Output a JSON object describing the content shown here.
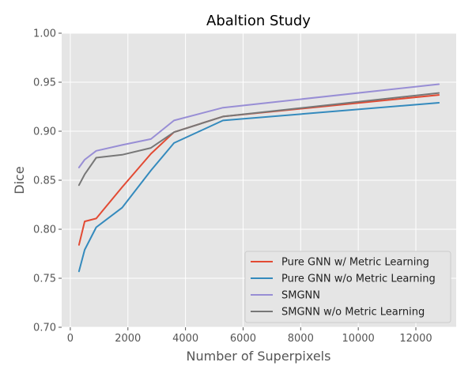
{
  "chart_data": {
    "type": "line",
    "title": "Abaltion Study",
    "xlabel": "Number of Superpixels",
    "ylabel": "Dice",
    "xlim": [
      -300,
      13400
    ],
    "ylim": [
      0.7,
      1.0
    ],
    "xticks": [
      0,
      2000,
      4000,
      6000,
      8000,
      10000,
      12000
    ],
    "yticks": [
      0.7,
      0.75,
      0.8,
      0.85,
      0.9,
      0.95,
      1.0
    ],
    "grid": true,
    "legend_position": "lower-right",
    "series": [
      {
        "name": "Pure GNN w/ Metric Learning",
        "color": "#E24A33",
        "x": [
          300,
          500,
          900,
          1800,
          2800,
          3600,
          5300,
          12800
        ],
        "y": [
          0.784,
          0.808,
          0.811,
          0.843,
          0.877,
          0.899,
          0.915,
          0.937
        ]
      },
      {
        "name": "Pure GNN w/o Metric Learning",
        "color": "#348ABD",
        "x": [
          300,
          500,
          900,
          1800,
          2800,
          3600,
          5300,
          12800
        ],
        "y": [
          0.757,
          0.779,
          0.802,
          0.822,
          0.86,
          0.888,
          0.911,
          0.929
        ]
      },
      {
        "name": "SMGNN",
        "color": "#988ED5",
        "x": [
          300,
          500,
          900,
          1800,
          2800,
          3600,
          5300,
          12800
        ],
        "y": [
          0.863,
          0.871,
          0.88,
          0.886,
          0.892,
          0.911,
          0.924,
          0.948
        ]
      },
      {
        "name": "SMGNN w/o Metric Learning",
        "color": "#777777",
        "x": [
          300,
          500,
          900,
          1800,
          2800,
          3600,
          5300,
          12800
        ],
        "y": [
          0.845,
          0.856,
          0.873,
          0.876,
          0.883,
          0.899,
          0.915,
          0.939
        ]
      }
    ]
  }
}
